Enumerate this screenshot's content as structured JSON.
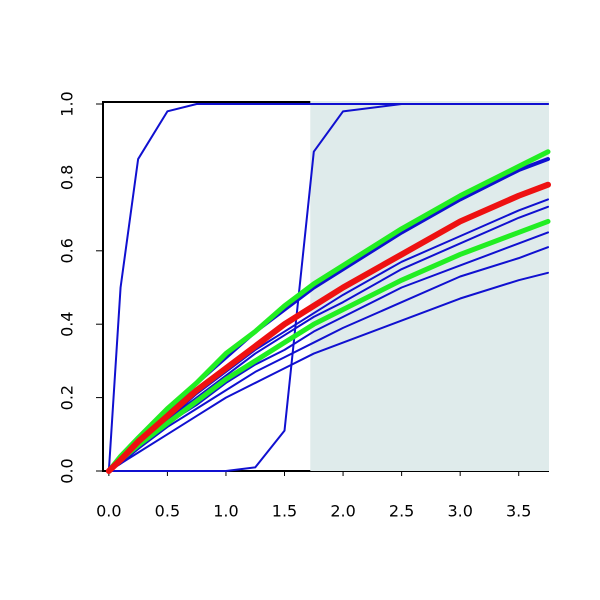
{
  "chart_data": {
    "type": "line",
    "x": [
      0,
      0.1,
      0.25,
      0.5,
      0.75,
      1,
      1.25,
      1.5,
      1.75,
      2,
      2.5,
      3,
      3.5,
      3.75
    ],
    "xlim": [
      -0.05,
      3.75
    ],
    "ylim": [
      0,
      1
    ],
    "xticks": [
      {
        "value": 0,
        "label": "0.0"
      },
      {
        "value": 0.5,
        "label": "0.5"
      },
      {
        "value": 1,
        "label": "1.0"
      },
      {
        "value": 1.5,
        "label": "1.5"
      },
      {
        "value": 2,
        "label": "2.0"
      },
      {
        "value": 2.5,
        "label": "2.5"
      },
      {
        "value": 3,
        "label": "3.0"
      },
      {
        "value": 3.5,
        "label": "3.5"
      }
    ],
    "yticks": [
      {
        "value": 0,
        "label": "0.0"
      },
      {
        "value": 0.2,
        "label": "0.2"
      },
      {
        "value": 0.4,
        "label": "0.4"
      },
      {
        "value": 0.6,
        "label": "0.6"
      },
      {
        "value": 0.8,
        "label": "0.8"
      },
      {
        "value": 1,
        "label": "1.0"
      }
    ],
    "shade": {
      "xlim": [
        1.72,
        3.75
      ],
      "color": "#dfebeb"
    },
    "series": [
      {
        "color": "#1010d0",
        "line_width": 2,
        "values": [
          0,
          0.5,
          0.85,
          0.98,
          1,
          1,
          1,
          1,
          1,
          1,
          1,
          1,
          1,
          1
        ]
      },
      {
        "color": "#1010d0",
        "line_width": 2,
        "values": [
          0,
          0,
          0,
          0,
          0,
          0,
          0.01,
          0.11,
          0.87,
          0.98,
          1,
          1,
          1,
          1
        ]
      },
      {
        "color": "#1010d0",
        "line_width": 2,
        "values": [
          0,
          0.02,
          0.05,
          0.1,
          0.15,
          0.2,
          0.24,
          0.28,
          0.32,
          0.35,
          0.41,
          0.47,
          0.52,
          0.54
        ]
      },
      {
        "color": "#1010d0",
        "line_width": 2,
        "values": [
          0,
          0.02,
          0.06,
          0.12,
          0.17,
          0.22,
          0.27,
          0.31,
          0.35,
          0.39,
          0.46,
          0.53,
          0.58,
          0.61
        ]
      },
      {
        "color": "#1010d0",
        "line_width": 2,
        "values": [
          0,
          0.03,
          0.06,
          0.13,
          0.18,
          0.24,
          0.29,
          0.33,
          0.38,
          0.42,
          0.5,
          0.56,
          0.62,
          0.65
        ]
      },
      {
        "color": "#1010d0",
        "line_width": 2,
        "values": [
          0,
          0.03,
          0.07,
          0.14,
          0.2,
          0.26,
          0.32,
          0.37,
          0.42,
          0.46,
          0.55,
          0.62,
          0.69,
          0.72
        ]
      },
      {
        "color": "#1010d0",
        "line_width": 2,
        "values": [
          0,
          0.03,
          0.07,
          0.14,
          0.21,
          0.27,
          0.33,
          0.38,
          0.43,
          0.48,
          0.57,
          0.64,
          0.71,
          0.74
        ]
      },
      {
        "color": "#1010d0",
        "line_width": 4,
        "values": [
          0,
          0.03,
          0.08,
          0.16,
          0.24,
          0.31,
          0.38,
          0.44,
          0.5,
          0.55,
          0.65,
          0.74,
          0.82,
          0.85
        ]
      },
      {
        "color": "#22ee22",
        "line_width": 5,
        "values": [
          0,
          0.04,
          0.09,
          0.17,
          0.24,
          0.32,
          0.38,
          0.45,
          0.51,
          0.56,
          0.66,
          0.75,
          0.83,
          0.87
        ]
      },
      {
        "color": "#22ee22",
        "line_width": 5,
        "values": [
          0,
          0.03,
          0.07,
          0.13,
          0.19,
          0.25,
          0.3,
          0.35,
          0.4,
          0.44,
          0.52,
          0.59,
          0.65,
          0.68
        ]
      },
      {
        "color": "#ee1111",
        "line_width": 6,
        "values": [
          0,
          0.03,
          0.08,
          0.15,
          0.22,
          0.28,
          0.34,
          0.4,
          0.45,
          0.5,
          0.59,
          0.68,
          0.75,
          0.78
        ]
      }
    ]
  }
}
